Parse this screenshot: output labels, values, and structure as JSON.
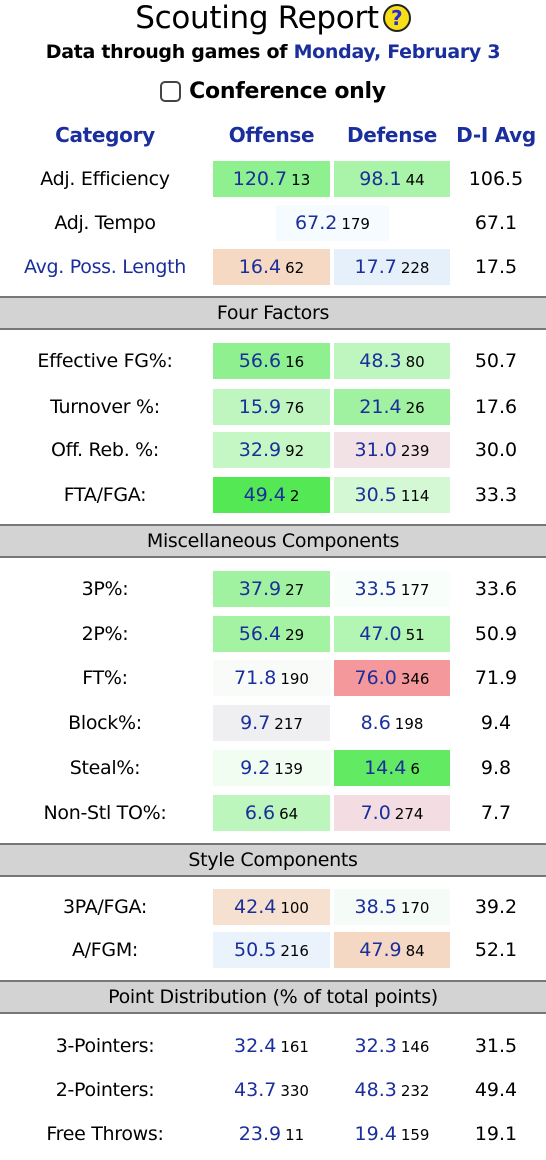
{
  "header": {
    "title": "Scouting Report",
    "help_icon_glyph": "?",
    "subtitle_prefix": "Data through games of",
    "subtitle_date": "Monday, February 3",
    "conference_only_label": "Conference only",
    "conference_only_checked": false
  },
  "columns": {
    "category": "Category",
    "offense": "Offense",
    "defense": "Defense",
    "d1avg": "D-I Avg"
  },
  "colors": {
    "link_blue": "#1a2e9c",
    "section_gray": "#d3d3d3",
    "help_icon_yellow": "#f7df17"
  },
  "rows": {
    "adj_eff": {
      "label": "Adj. Efficiency",
      "off": "120.7",
      "off_rank": "13",
      "off_bg": "#8ef08e",
      "def": "98.1",
      "def_rank": "44",
      "def_bg": "#a9f4a9",
      "avg": "106.5"
    },
    "adj_tempo": {
      "label": "Adj. Tempo",
      "val": "67.2",
      "rank": "179",
      "bg": "#f6fbff",
      "avg": "67.1"
    },
    "poss_len": {
      "label": "Avg. Poss. Length",
      "off": "16.4",
      "off_rank": "62",
      "off_bg": "#f6d9c3",
      "def": "17.7",
      "def_rank": "228",
      "def_bg": "#e6f0fb",
      "avg": "17.5"
    },
    "efg": {
      "label": "Effective FG%:",
      "off": "56.6",
      "off_rank": "16",
      "off_bg": "#8ef08e",
      "def": "48.3",
      "def_rank": "80",
      "def_bg": "#bff6bf",
      "avg": "50.7"
    },
    "to": {
      "label": "Turnover %:",
      "off": "15.9",
      "off_rank": "76",
      "off_bg": "#bff6bf",
      "def": "21.4",
      "def_rank": "26",
      "def_bg": "#a0f2a0",
      "avg": "17.6"
    },
    "orb": {
      "label": "Off. Reb. %:",
      "off": "32.9",
      "off_rank": "92",
      "off_bg": "#c4f7c4",
      "def": "31.0",
      "def_rank": "239",
      "def_bg": "#f2e2e6",
      "avg": "30.0"
    },
    "ftr": {
      "label": "FTA/FGA:",
      "off": "49.4",
      "off_rank": "2",
      "off_bg": "#55e855",
      "def": "30.5",
      "def_rank": "114",
      "def_bg": "#d4f8d4",
      "avg": "33.3"
    },
    "p3": {
      "label": "3P%:",
      "off": "37.9",
      "off_rank": "27",
      "off_bg": "#a0f2a0",
      "def": "33.5",
      "def_rank": "177",
      "def_bg": "#f8fffa",
      "avg": "33.6"
    },
    "p2": {
      "label": "2P%:",
      "off": "56.4",
      "off_rank": "29",
      "off_bg": "#a3f3a3",
      "def": "47.0",
      "def_rank": "51",
      "def_bg": "#b3f5b3",
      "avg": "50.9"
    },
    "ft": {
      "label": "FT%:",
      "off": "71.8",
      "off_rank": "190",
      "off_bg": "#f9fbf9",
      "def": "76.0",
      "def_rank": "346",
      "def_bg": "#f5989c",
      "avg": "71.9"
    },
    "blk": {
      "label": "Block%:",
      "off": "9.7",
      "off_rank": "217",
      "off_bg": "#efeef0",
      "def": "8.6",
      "def_rank": "198",
      "def_bg": "#ffffff",
      "avg": "9.4"
    },
    "stl": {
      "label": "Steal%:",
      "off": "9.2",
      "off_rank": "139",
      "off_bg": "#f1fdf1",
      "def": "14.4",
      "def_rank": "6",
      "def_bg": "#62ea62",
      "avg": "9.8"
    },
    "nst": {
      "label": "Non-Stl TO%:",
      "off": "6.6",
      "off_rank": "64",
      "off_bg": "#bdf6bd",
      "def": "7.0",
      "def_rank": "274",
      "def_bg": "#f3dde2",
      "avg": "7.7"
    },
    "p3a": {
      "label": "3PA/FGA:",
      "off": "42.4",
      "off_rank": "100",
      "off_bg": "#f6e0d0",
      "def": "38.5",
      "def_rank": "170",
      "def_bg": "#f5fbf7",
      "avg": "39.2"
    },
    "afgm": {
      "label": "A/FGM:",
      "off": "50.5",
      "off_rank": "216",
      "off_bg": "#eaf3fb",
      "def": "47.9",
      "def_rank": "84",
      "def_bg": "#f4d8c4",
      "avg": "52.1"
    },
    "pts3": {
      "label": "3-Pointers:",
      "off": "32.4",
      "off_rank": "161",
      "off_bg": "#ffffff",
      "def": "32.3",
      "def_rank": "146",
      "def_bg": "#ffffff",
      "avg": "31.5"
    },
    "pts2": {
      "label": "2-Pointers:",
      "off": "43.7",
      "off_rank": "330",
      "off_bg": "#ffffff",
      "def": "48.3",
      "def_rank": "232",
      "def_bg": "#ffffff",
      "avg": "49.4"
    },
    "ptsft": {
      "label": "Free Throws:",
      "off": "23.9",
      "off_rank": "11",
      "off_bg": "#ffffff",
      "def": "19.4",
      "def_rank": "159",
      "def_bg": "#ffffff",
      "avg": "19.1"
    }
  },
  "sections": {
    "four_factors": "Four Factors",
    "misc": "Miscellaneous Components",
    "style": "Style Components",
    "points": "Point Distribution (% of total points)"
  }
}
